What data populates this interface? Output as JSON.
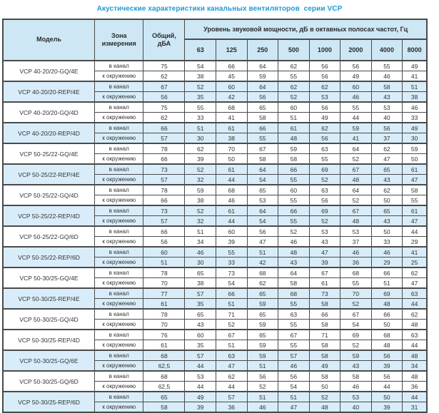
{
  "title": "Акустические характеристики канальных вентиляторов  серии VCP",
  "colors": {
    "title_text": "#2299d4",
    "header_bg": "#cde7f5",
    "stripe_bg": "#d8edf9",
    "border": "#4a4a4a"
  },
  "table": {
    "headers": {
      "model": "Модель",
      "zone": "Зона измерения",
      "total": "Общий, дБА",
      "spectrum": "Уровень звуковой мощности, дБ в октавных полосах частот, Гц"
    },
    "frequencies": [
      "63",
      "125",
      "250",
      "500",
      "1000",
      "2000",
      "4000",
      "8000"
    ],
    "zone_labels": [
      "в канал",
      "к окружению"
    ],
    "models": [
      {
        "name": "VCP 40-20/20-GQ/4E",
        "shaded": false,
        "rows": [
          {
            "zone": "в канал",
            "total": "75",
            "bands": [
              54,
              66,
              64,
              62,
              56,
              56,
              55,
              49
            ]
          },
          {
            "zone": "к окружению",
            "total": "62",
            "bands": [
              38,
              45,
              59,
              55,
              56,
              49,
              46,
              41
            ]
          }
        ]
      },
      {
        "name": "VCP 40-20/20-REP/4E",
        "shaded": true,
        "rows": [
          {
            "zone": "в канал",
            "total": "67",
            "bands": [
              52,
              60,
              64,
              62,
              62,
              60,
              58,
              51
            ]
          },
          {
            "zone": "к окружению",
            "total": "56",
            "bands": [
              35,
              42,
              56,
              52,
              53,
              46,
              43,
              38
            ]
          }
        ]
      },
      {
        "name": "VCP 40-20/20-GQ/4D",
        "shaded": false,
        "rows": [
          {
            "zone": "в канал",
            "total": "75",
            "bands": [
              55,
              68,
              65,
              60,
              56,
              55,
              53,
              46
            ]
          },
          {
            "zone": "к окружению",
            "total": "62",
            "bands": [
              33,
              41,
              58,
              51,
              49,
              44,
              40,
              33
            ]
          }
        ]
      },
      {
        "name": "VCP 40-20/20-REP/4D",
        "shaded": true,
        "rows": [
          {
            "zone": "в канал",
            "total": "66",
            "bands": [
              51,
              61,
              66,
              61,
              62,
              59,
              56,
              49
            ]
          },
          {
            "zone": "к окружению",
            "total": "57",
            "bands": [
              30,
              38,
              55,
              48,
              56,
              41,
              37,
              30
            ]
          }
        ]
      },
      {
        "name": "VCP 50-25/22-GQ/4E",
        "shaded": false,
        "rows": [
          {
            "zone": "в канал",
            "total": "78",
            "bands": [
              62,
              70,
              67,
              59,
              63,
              64,
              62,
              59
            ]
          },
          {
            "zone": "к окружению",
            "total": "66",
            "bands": [
              39,
              50,
              58,
              58,
              55,
              52,
              47,
              50
            ]
          }
        ]
      },
      {
        "name": "VCP 50-25/22-REP/4E",
        "shaded": true,
        "rows": [
          {
            "zone": "в канал",
            "total": "73",
            "bands": [
              52,
              61,
              64,
              66,
              69,
              67,
              65,
              61
            ]
          },
          {
            "zone": "к окружению",
            "total": "57",
            "bands": [
              32,
              44,
              54,
              55,
              52,
              48,
              43,
              47
            ]
          }
        ]
      },
      {
        "name": "VCP 50-25/22-GQ/4D",
        "shaded": false,
        "rows": [
          {
            "zone": "в канал",
            "total": "78",
            "bands": [
              59,
              68,
              65,
              60,
              63,
              64,
              62,
              58
            ]
          },
          {
            "zone": "к окружению",
            "total": "66",
            "bands": [
              38,
              46,
              53,
              55,
              56,
              52,
              50,
              55
            ]
          }
        ]
      },
      {
        "name": "VCP 50-25/22-REP/4D",
        "shaded": true,
        "rows": [
          {
            "zone": "в канал",
            "total": "73",
            "bands": [
              52,
              61,
              64,
              66,
              69,
              67,
              65,
              61
            ]
          },
          {
            "zone": "к окружению",
            "total": "57",
            "bands": [
              32,
              44,
              54,
              55,
              52,
              48,
              43,
              47
            ]
          }
        ]
      },
      {
        "name": "VCP 50-25/22-GQ/6D",
        "shaded": false,
        "rows": [
          {
            "zone": "в канал",
            "total": "66",
            "bands": [
              51,
              60,
              56,
              52,
              53,
              53,
              50,
              44
            ]
          },
          {
            "zone": "к окружению",
            "total": "56",
            "bands": [
              34,
              39,
              47,
              46,
              43,
              37,
              33,
              29
            ]
          }
        ]
      },
      {
        "name": "VCP 50-25/22-REP/6D",
        "shaded": true,
        "rows": [
          {
            "zone": "в канал",
            "total": "60",
            "bands": [
              46,
              55,
              51,
              48,
              47,
              46,
              46,
              41
            ]
          },
          {
            "zone": "к окружению",
            "total": "51",
            "bands": [
              30,
              33,
              42,
              43,
              39,
              36,
              29,
              25
            ]
          }
        ]
      },
      {
        "name": "VCP 50-30/25-GQ/4E",
        "shaded": false,
        "rows": [
          {
            "zone": "в канал",
            "total": "78",
            "bands": [
              65,
              73,
              68,
              64,
              67,
              68,
              66,
              62
            ]
          },
          {
            "zone": "к окружению",
            "total": "70",
            "bands": [
              38,
              54,
              62,
              58,
              61,
              55,
              51,
              47
            ]
          }
        ]
      },
      {
        "name": "VCP 50-30/25-REP/4E",
        "shaded": true,
        "rows": [
          {
            "zone": "в канал",
            "total": "77",
            "bands": [
              57,
              66,
              65,
              68,
              73,
              70,
              69,
              63
            ]
          },
          {
            "zone": "к окружению",
            "total": "61",
            "bands": [
              35,
              51,
              59,
              55,
              58,
              52,
              48,
              44
            ]
          }
        ]
      },
      {
        "name": "VCP 50-30/25-GQ/4D",
        "shaded": false,
        "rows": [
          {
            "zone": "в канал",
            "total": "78",
            "bands": [
              65,
              71,
              65,
              63,
              66,
              67,
              66,
              62
            ]
          },
          {
            "zone": "к окружению",
            "total": "70",
            "bands": [
              43,
              52,
              59,
              55,
              58,
              54,
              50,
              48
            ]
          }
        ]
      },
      {
        "name": "VCP 50-30/25-REP/4D",
        "shaded": false,
        "rows": [
          {
            "zone": "в канал",
            "total": "76",
            "bands": [
              60,
              67,
              65,
              67,
              71,
              69,
              68,
              63
            ]
          },
          {
            "zone": "к окружению",
            "total": "61",
            "bands": [
              35,
              51,
              59,
              55,
              58,
              52,
              48,
              44
            ]
          }
        ]
      },
      {
        "name": "VCP 50-30/25-GQ/6E",
        "shaded": true,
        "rows": [
          {
            "zone": "в канал",
            "total": "68",
            "bands": [
              57,
              63,
              59,
              57,
              58,
              59,
              56,
              48
            ]
          },
          {
            "zone": "к окружению",
            "total": "62,5",
            "bands": [
              44,
              47,
              51,
              46,
              49,
              43,
              39,
              34
            ]
          }
        ]
      },
      {
        "name": "VCP 50-30/25-GQ/6D",
        "shaded": false,
        "rows": [
          {
            "zone": "в канал",
            "total": "68",
            "bands": [
              53,
              62,
              56,
              56,
              58,
              58,
              56,
              48
            ]
          },
          {
            "zone": "к окружению",
            "total": "62,5",
            "bands": [
              44,
              44,
              52,
              54,
              50,
              46,
              44,
              36
            ]
          }
        ]
      },
      {
        "name": "VCP 50-30/25-REP/6D",
        "shaded": true,
        "rows": [
          {
            "zone": "в канал",
            "total": "65",
            "bands": [
              49,
              57,
              51,
              51,
              52,
              53,
              50,
              44
            ]
          },
          {
            "zone": "к окружению",
            "total": "58",
            "bands": [
              39,
              36,
              46,
              47,
              48,
              40,
              39,
              31
            ]
          }
        ]
      }
    ]
  }
}
